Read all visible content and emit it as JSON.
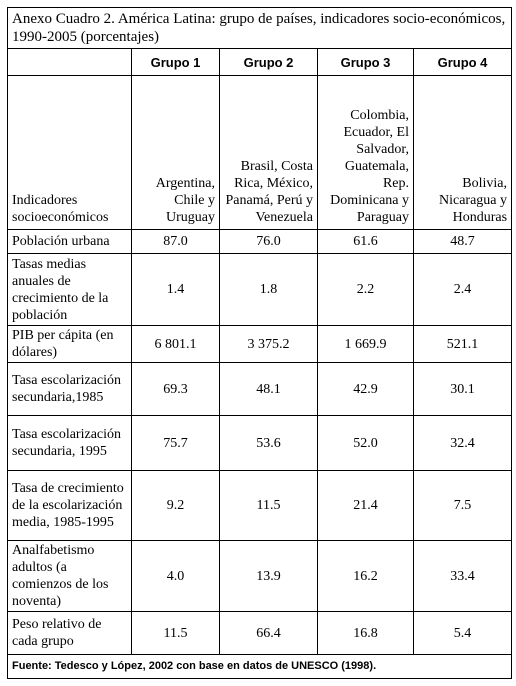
{
  "title": "Anexo Cuadro 2. América Latina: grupo de países, indicadores socio-económicos, 1990-2005 (porcentajes)",
  "groups": [
    "Grupo 1",
    "Grupo 2",
    "Grupo 3",
    "Grupo 4"
  ],
  "indicators_header": "Indicadores socioeconómicos",
  "countries": [
    "Argentina, Chile y Uruguay",
    "Brasil, Costa Rica, México, Panamá, Perú y Venezuela",
    "Colombia, Ecuador, El Salvador, Guatemala, Rep. Dominicana y Paraguay",
    "Bolivia, Nicaragua y Honduras"
  ],
  "rows": [
    {
      "label": "Población urbana",
      "values": [
        "87.0",
        "76.0",
        "61.6",
        "48.7"
      ]
    },
    {
      "label": "Tasas medias anuales de crecimiento de la población",
      "values": [
        "1.4",
        "1.8",
        "2.2",
        "2.4"
      ]
    },
    {
      "label": "PIB per cápita (en dólares)",
      "values": [
        "6 801.1",
        "3 375.2",
        "1 669.9",
        "521.1"
      ]
    },
    {
      "label": "Tasa escolarización secundaria,1985",
      "values": [
        "69.3",
        "48.1",
        "42.9",
        "30.1"
      ]
    },
    {
      "label": "Tasa escolarización secundaria, 1995",
      "values": [
        "75.7",
        "53.6",
        "52.0",
        "32.4"
      ]
    },
    {
      "label": "Tasa de crecimiento de la escolarización media, 1985-1995",
      "values": [
        "9.2",
        "11.5",
        "21.4",
        "7.5"
      ]
    },
    {
      "label": "Analfabetismo adultos (a comienzos de los noventa)",
      "values": [
        "4.0",
        "13.9",
        "16.2",
        "33.4"
      ]
    },
    {
      "label": "Peso relativo de cada grupo",
      "values": [
        "11.5",
        "66.4",
        "16.8",
        "5.4"
      ]
    }
  ],
  "source": "Fuente: Tedesco y López, 2002 con base en datos de UNESCO (1998)."
}
